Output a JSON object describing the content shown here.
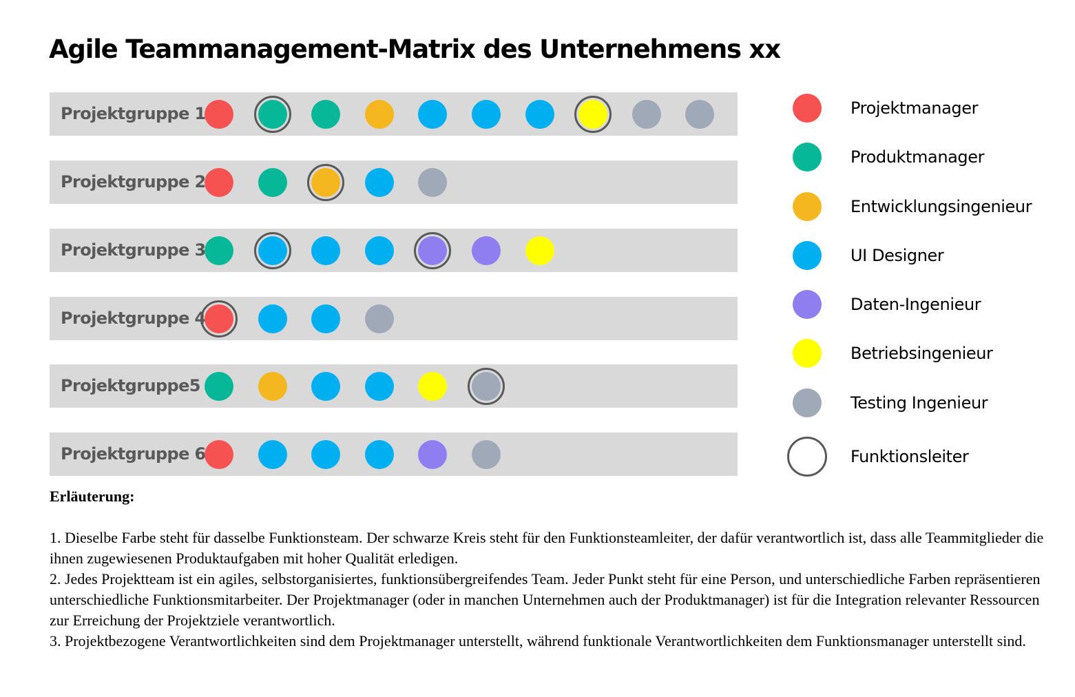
{
  "title": "Agile Teammanagement-Matrix des Unternehmens xx",
  "colors": {
    "projektmanager": "#f75252",
    "produktmanager": "#06b898",
    "entwicklungsingenieur": "#f5b71f",
    "ui_designer": "#00aff0",
    "daten_ingenieur": "#8f7ef0",
    "betriebsingenieur": "#ffff00",
    "testing_ingenieur": "#a0a9b8",
    "row_background": "#d9d9d9",
    "leader_ring": "#595959"
  },
  "groups": [
    {
      "label": "Projektgruppe 1",
      "members": [
        {
          "role": "projektmanager",
          "leader": false
        },
        {
          "role": "produktmanager",
          "leader": true
        },
        {
          "role": "produktmanager",
          "leader": false
        },
        {
          "role": "entwicklungsingenieur",
          "leader": false
        },
        {
          "role": "ui_designer",
          "leader": false
        },
        {
          "role": "ui_designer",
          "leader": false
        },
        {
          "role": "ui_designer",
          "leader": false
        },
        {
          "role": "betriebsingenieur",
          "leader": true
        },
        {
          "role": "testing_ingenieur",
          "leader": false
        },
        {
          "role": "testing_ingenieur",
          "leader": false
        }
      ]
    },
    {
      "label": "Projektgruppe 2",
      "members": [
        {
          "role": "projektmanager",
          "leader": false
        },
        {
          "role": "produktmanager",
          "leader": false
        },
        {
          "role": "entwicklungsingenieur",
          "leader": true
        },
        {
          "role": "ui_designer",
          "leader": false
        },
        {
          "role": "testing_ingenieur",
          "leader": false
        }
      ]
    },
    {
      "label": "Projektgruppe 3",
      "members": [
        {
          "role": "produktmanager",
          "leader": false
        },
        {
          "role": "ui_designer",
          "leader": true
        },
        {
          "role": "ui_designer",
          "leader": false
        },
        {
          "role": "ui_designer",
          "leader": false
        },
        {
          "role": "daten_ingenieur",
          "leader": true
        },
        {
          "role": "daten_ingenieur",
          "leader": false
        },
        {
          "role": "betriebsingenieur",
          "leader": false
        }
      ]
    },
    {
      "label": "Projektgruppe 4",
      "members": [
        {
          "role": "projektmanager",
          "leader": true
        },
        {
          "role": "ui_designer",
          "leader": false
        },
        {
          "role": "ui_designer",
          "leader": false
        },
        {
          "role": "testing_ingenieur",
          "leader": false
        }
      ]
    },
    {
      "label": "Projektgruppe5",
      "members": [
        {
          "role": "produktmanager",
          "leader": false
        },
        {
          "role": "entwicklungsingenieur",
          "leader": false
        },
        {
          "role": "ui_designer",
          "leader": false
        },
        {
          "role": "ui_designer",
          "leader": false
        },
        {
          "role": "betriebsingenieur",
          "leader": false
        },
        {
          "role": "testing_ingenieur",
          "leader": true
        }
      ]
    },
    {
      "label": "Projektgruppe 6",
      "members": [
        {
          "role": "projektmanager",
          "leader": false
        },
        {
          "role": "ui_designer",
          "leader": false
        },
        {
          "role": "ui_designer",
          "leader": false
        },
        {
          "role": "ui_designer",
          "leader": false
        },
        {
          "role": "daten_ingenieur",
          "leader": false
        },
        {
          "role": "testing_ingenieur",
          "leader": false
        }
      ]
    }
  ],
  "legend": [
    {
      "key": "projektmanager",
      "label": "Projektmanager"
    },
    {
      "key": "produktmanager",
      "label": "Produktmanager"
    },
    {
      "key": "entwicklungsingenieur",
      "label": "Entwicklungsingenieur"
    },
    {
      "key": "ui_designer",
      "label": "UI Designer"
    },
    {
      "key": "daten_ingenieur",
      "label": "Daten-Ingenieur"
    },
    {
      "key": "betriebsingenieur",
      "label": "Betriebsingenieur"
    },
    {
      "key": "testing_ingenieur",
      "label": "Testing Ingenieur"
    },
    {
      "key": "leader",
      "label": "Funktionsleiter"
    }
  ],
  "explanation": {
    "heading": "Erläuterung:",
    "points": [
      "1. Dieselbe Farbe steht für dasselbe Funktionsteam. Der schwarze Kreis steht für den Funktionsteamleiter, der dafür verantwortlich ist, dass alle Teammitglieder die ihnen zugewiesenen Produktaufgaben mit hoher Qualität erledigen.",
      "2. Jedes Projektteam ist ein agiles, selbstorganisiertes, funktionsübergreifendes Team. Jeder Punkt steht für eine Person, und unterschiedliche Farben repräsentieren unterschiedliche Funktionsmitarbeiter. Der Projektmanager (oder in manchen Unternehmen auch der Produktmanager) ist für die Integration relevanter Ressourcen zur Erreichung der Projektziele verantwortlich.",
      "3. Projektbezogene Verantwortlichkeiten sind dem Projektmanager unterstellt, während funktionale Verantwortlichkeiten dem Funktionsmanager unterstellt sind."
    ]
  }
}
